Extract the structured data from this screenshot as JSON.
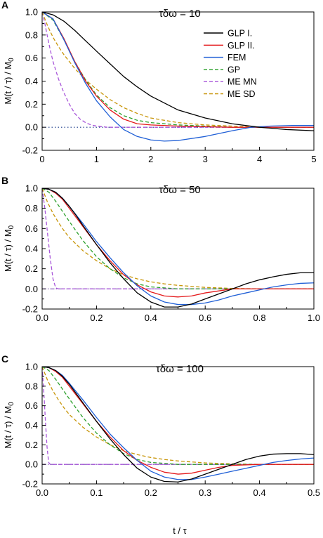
{
  "figure": {
    "ylabel": "M(t / τ) / M",
    "ylabel_sub": "0",
    "xlabel": "t / τ"
  },
  "legend": {
    "placement": "top-right of panel A",
    "items": [
      {
        "label": "GLP I.",
        "color": "#000000",
        "dashed": false
      },
      {
        "label": "GLP II.",
        "color": "#e41a1c",
        "dashed": false
      },
      {
        "label": "FEM",
        "color": "#1f5fd6",
        "dashed": false
      },
      {
        "label": "GP",
        "color": "#2ca02c",
        "dashed": true
      },
      {
        "label": "ME MN",
        "color": "#a855d9",
        "dashed": true
      },
      {
        "label": "ME SD",
        "color": "#c8960a",
        "dashed": true
      }
    ]
  },
  "chart_data": [
    {
      "type": "line",
      "panel": "A",
      "title": "τδω = 10",
      "xlim": [
        0,
        5
      ],
      "ylim": [
        -0.2,
        1.0
      ],
      "xticks": [
        "0",
        "1",
        "2",
        "3",
        "4",
        "5"
      ],
      "yticks": [
        "-0.2",
        "0.0",
        "0.2",
        "0.4",
        "0.6",
        "0.8",
        "1.0"
      ],
      "zero_line": "dotted",
      "series": [
        {
          "name": "GLP I.",
          "x": [
            0,
            0.2,
            0.4,
            0.6,
            0.8,
            1.0,
            1.25,
            1.5,
            1.75,
            2.0,
            2.5,
            3.0,
            3.5,
            4.0,
            4.5,
            5.0
          ],
          "y": [
            1.0,
            0.975,
            0.92,
            0.84,
            0.75,
            0.66,
            0.55,
            0.44,
            0.35,
            0.27,
            0.15,
            0.08,
            0.03,
            0.0,
            -0.02,
            -0.03
          ]
        },
        {
          "name": "GLP II.",
          "x": [
            0,
            0.2,
            0.4,
            0.6,
            0.8,
            1.0,
            1.25,
            1.5,
            1.75,
            2.0,
            2.5,
            3.0,
            3.5,
            4.0,
            4.5,
            5.0
          ],
          "y": [
            1.0,
            0.94,
            0.77,
            0.57,
            0.4,
            0.27,
            0.15,
            0.07,
            0.03,
            0.02,
            0.01,
            0.005,
            0.0,
            0.0,
            0.0,
            0.0
          ]
        },
        {
          "name": "FEM",
          "x": [
            0,
            0.2,
            0.4,
            0.6,
            0.8,
            1.0,
            1.25,
            1.5,
            1.75,
            2.0,
            2.25,
            2.5,
            3.0,
            3.5,
            3.85,
            4.2,
            4.6,
            5.0
          ],
          "y": [
            1.0,
            0.94,
            0.76,
            0.56,
            0.38,
            0.23,
            0.09,
            -0.02,
            -0.08,
            -0.11,
            -0.12,
            -0.115,
            -0.08,
            -0.03,
            0.0,
            0.01,
            0.015,
            0.015
          ]
        },
        {
          "name": "GP",
          "x": [
            0,
            0.2,
            0.4,
            0.6,
            0.8,
            1.0,
            1.25,
            1.5,
            1.75,
            2.0,
            2.5,
            3.0,
            3.5,
            4.0,
            5.0
          ],
          "y": [
            1.0,
            0.93,
            0.76,
            0.57,
            0.41,
            0.28,
            0.17,
            0.1,
            0.06,
            0.04,
            0.02,
            0.01,
            0.0,
            0.0,
            0.0
          ]
        },
        {
          "name": "ME MN",
          "x": [
            0,
            0.05,
            0.1,
            0.15,
            0.2,
            0.3,
            0.4,
            0.5,
            0.6,
            0.7,
            0.8,
            0.9,
            1.0,
            1.2,
            1.5,
            5.0
          ],
          "y": [
            1.0,
            0.9,
            0.78,
            0.67,
            0.57,
            0.42,
            0.3,
            0.2,
            0.12,
            0.07,
            0.04,
            0.02,
            0.01,
            0.0,
            0.0,
            0.0
          ]
        },
        {
          "name": "ME SD",
          "x": [
            0,
            0.1,
            0.2,
            0.3,
            0.4,
            0.6,
            0.8,
            1.0,
            1.25,
            1.5,
            1.75,
            2.0,
            2.5,
            3.0,
            3.5,
            4.0,
            5.0
          ],
          "y": [
            1.0,
            0.88,
            0.78,
            0.7,
            0.63,
            0.51,
            0.41,
            0.33,
            0.24,
            0.17,
            0.12,
            0.08,
            0.04,
            0.02,
            0.01,
            0.0,
            0.0
          ]
        }
      ]
    },
    {
      "type": "line",
      "panel": "B",
      "title": "τδω = 50",
      "xlim": [
        0,
        1.0
      ],
      "ylim": [
        -0.2,
        1.0
      ],
      "xticks": [
        "0.0",
        "0.2",
        "0.4",
        "0.6",
        "0.8",
        "1.0"
      ],
      "yticks": [
        "-0.2",
        "0.0",
        "0.2",
        "0.4",
        "0.6",
        "0.8",
        "1.0"
      ],
      "zero_line": "dash-dot",
      "series": [
        {
          "name": "GLP I.",
          "x": [
            0,
            0.025,
            0.05,
            0.075,
            0.1,
            0.125,
            0.15,
            0.2,
            0.25,
            0.3,
            0.35,
            0.4,
            0.45,
            0.5,
            0.55,
            0.6,
            0.65,
            0.7,
            0.75,
            0.8,
            0.85,
            0.9,
            0.95,
            1.0
          ],
          "y": [
            1.0,
            0.99,
            0.96,
            0.9,
            0.82,
            0.73,
            0.63,
            0.44,
            0.26,
            0.1,
            -0.04,
            -0.13,
            -0.18,
            -0.18,
            -0.15,
            -0.1,
            -0.05,
            0.0,
            0.05,
            0.09,
            0.12,
            0.145,
            0.16,
            0.16
          ]
        },
        {
          "name": "GLP II.",
          "x": [
            0,
            0.025,
            0.05,
            0.075,
            0.1,
            0.15,
            0.2,
            0.25,
            0.3,
            0.35,
            0.4,
            0.45,
            0.5,
            0.55,
            0.6,
            0.65,
            0.7,
            0.8,
            1.0
          ],
          "y": [
            1.0,
            0.99,
            0.95,
            0.89,
            0.8,
            0.62,
            0.44,
            0.28,
            0.14,
            0.04,
            -0.03,
            -0.07,
            -0.08,
            -0.07,
            -0.04,
            -0.02,
            0.0,
            0.0,
            0.0
          ]
        },
        {
          "name": "FEM",
          "x": [
            0,
            0.025,
            0.05,
            0.075,
            0.1,
            0.15,
            0.2,
            0.25,
            0.3,
            0.35,
            0.4,
            0.45,
            0.5,
            0.55,
            0.6,
            0.65,
            0.7,
            0.75,
            0.8,
            0.85,
            0.9,
            0.95,
            1.0
          ],
          "y": [
            1.0,
            0.99,
            0.96,
            0.9,
            0.82,
            0.65,
            0.47,
            0.31,
            0.16,
            0.03,
            -0.07,
            -0.13,
            -0.155,
            -0.155,
            -0.14,
            -0.11,
            -0.07,
            -0.04,
            -0.01,
            0.02,
            0.04,
            0.055,
            0.06
          ]
        },
        {
          "name": "GP",
          "x": [
            0,
            0.025,
            0.05,
            0.075,
            0.1,
            0.15,
            0.2,
            0.25,
            0.3,
            0.35,
            0.4,
            0.45,
            0.5,
            0.6,
            0.7,
            1.0
          ],
          "y": [
            1.0,
            0.96,
            0.87,
            0.77,
            0.67,
            0.48,
            0.32,
            0.2,
            0.11,
            0.05,
            0.02,
            0.01,
            0.0,
            0.0,
            0.0,
            0.0
          ]
        },
        {
          "name": "ME MN",
          "x": [
            0,
            0.01,
            0.02,
            0.03,
            0.04,
            0.05,
            0.06,
            0.1,
            1.0
          ],
          "y": [
            1.0,
            0.8,
            0.55,
            0.3,
            0.1,
            0.01,
            0.0,
            0.0,
            0.0
          ]
        },
        {
          "name": "ME SD",
          "x": [
            0,
            0.02,
            0.04,
            0.06,
            0.08,
            0.1,
            0.15,
            0.2,
            0.25,
            0.3,
            0.35,
            0.4,
            0.45,
            0.5,
            0.55,
            0.6,
            0.7,
            0.8,
            1.0
          ],
          "y": [
            1.0,
            0.86,
            0.75,
            0.66,
            0.58,
            0.51,
            0.38,
            0.28,
            0.2,
            0.14,
            0.1,
            0.07,
            0.05,
            0.035,
            0.025,
            0.015,
            0.005,
            0.0,
            0.0
          ]
        }
      ]
    },
    {
      "type": "line",
      "panel": "C",
      "title": "τδω = 100",
      "xlim": [
        0,
        0.5
      ],
      "ylim": [
        -0.2,
        1.0
      ],
      "xticks": [
        "0.0",
        "0.1",
        "0.2",
        "0.3",
        "0.4",
        "0.5"
      ],
      "yticks": [
        "-0.2",
        "0.0",
        "0.2",
        "0.4",
        "0.6",
        "0.8",
        "1.0"
      ],
      "zero_line": "dash-dot",
      "series": [
        {
          "name": "GLP I.",
          "x": [
            0,
            0.0125,
            0.025,
            0.0375,
            0.05,
            0.075,
            0.1,
            0.125,
            0.15,
            0.175,
            0.2,
            0.225,
            0.25,
            0.275,
            0.3,
            0.325,
            0.35,
            0.375,
            0.4,
            0.425,
            0.45,
            0.475,
            0.5
          ],
          "y": [
            1.0,
            0.99,
            0.96,
            0.9,
            0.82,
            0.63,
            0.44,
            0.26,
            0.1,
            -0.04,
            -0.13,
            -0.175,
            -0.18,
            -0.15,
            -0.1,
            -0.05,
            0.0,
            0.05,
            0.085,
            0.105,
            0.11,
            0.11,
            0.1
          ]
        },
        {
          "name": "GLP II.",
          "x": [
            0,
            0.0125,
            0.025,
            0.0375,
            0.05,
            0.075,
            0.1,
            0.125,
            0.15,
            0.175,
            0.2,
            0.225,
            0.25,
            0.275,
            0.3,
            0.325,
            0.35,
            0.4,
            0.5
          ],
          "y": [
            1.0,
            0.99,
            0.95,
            0.89,
            0.8,
            0.62,
            0.44,
            0.28,
            0.14,
            0.04,
            -0.03,
            -0.08,
            -0.1,
            -0.09,
            -0.06,
            -0.03,
            -0.01,
            0.0,
            0.0
          ]
        },
        {
          "name": "FEM",
          "x": [
            0,
            0.0125,
            0.025,
            0.0375,
            0.05,
            0.075,
            0.1,
            0.125,
            0.15,
            0.175,
            0.2,
            0.225,
            0.25,
            0.275,
            0.3,
            0.325,
            0.35,
            0.375,
            0.4,
            0.425,
            0.45,
            0.475,
            0.5
          ],
          "y": [
            1.0,
            0.99,
            0.96,
            0.91,
            0.83,
            0.66,
            0.48,
            0.31,
            0.17,
            0.04,
            -0.07,
            -0.13,
            -0.155,
            -0.155,
            -0.13,
            -0.1,
            -0.07,
            -0.04,
            -0.01,
            0.02,
            0.04,
            0.055,
            0.065
          ]
        },
        {
          "name": "GP",
          "x": [
            0,
            0.0125,
            0.025,
            0.0375,
            0.05,
            0.075,
            0.1,
            0.125,
            0.15,
            0.175,
            0.2,
            0.25,
            0.3,
            0.5
          ],
          "y": [
            1.0,
            0.96,
            0.87,
            0.77,
            0.67,
            0.48,
            0.32,
            0.2,
            0.11,
            0.05,
            0.02,
            0.0,
            0.0,
            0.0
          ]
        },
        {
          "name": "ME MN",
          "x": [
            0,
            0.003,
            0.006,
            0.009,
            0.012,
            0.015,
            0.03,
            0.5
          ],
          "y": [
            1.0,
            0.75,
            0.45,
            0.18,
            0.02,
            0.0,
            0.0,
            0.0
          ]
        },
        {
          "name": "ME SD",
          "x": [
            0,
            0.01,
            0.02,
            0.03,
            0.04,
            0.05,
            0.075,
            0.1,
            0.125,
            0.15,
            0.175,
            0.2,
            0.225,
            0.25,
            0.3,
            0.35,
            0.4,
            0.5
          ],
          "y": [
            1.0,
            0.86,
            0.75,
            0.66,
            0.58,
            0.51,
            0.38,
            0.28,
            0.2,
            0.14,
            0.1,
            0.07,
            0.05,
            0.035,
            0.015,
            0.005,
            0.0,
            0.0
          ]
        }
      ]
    }
  ]
}
